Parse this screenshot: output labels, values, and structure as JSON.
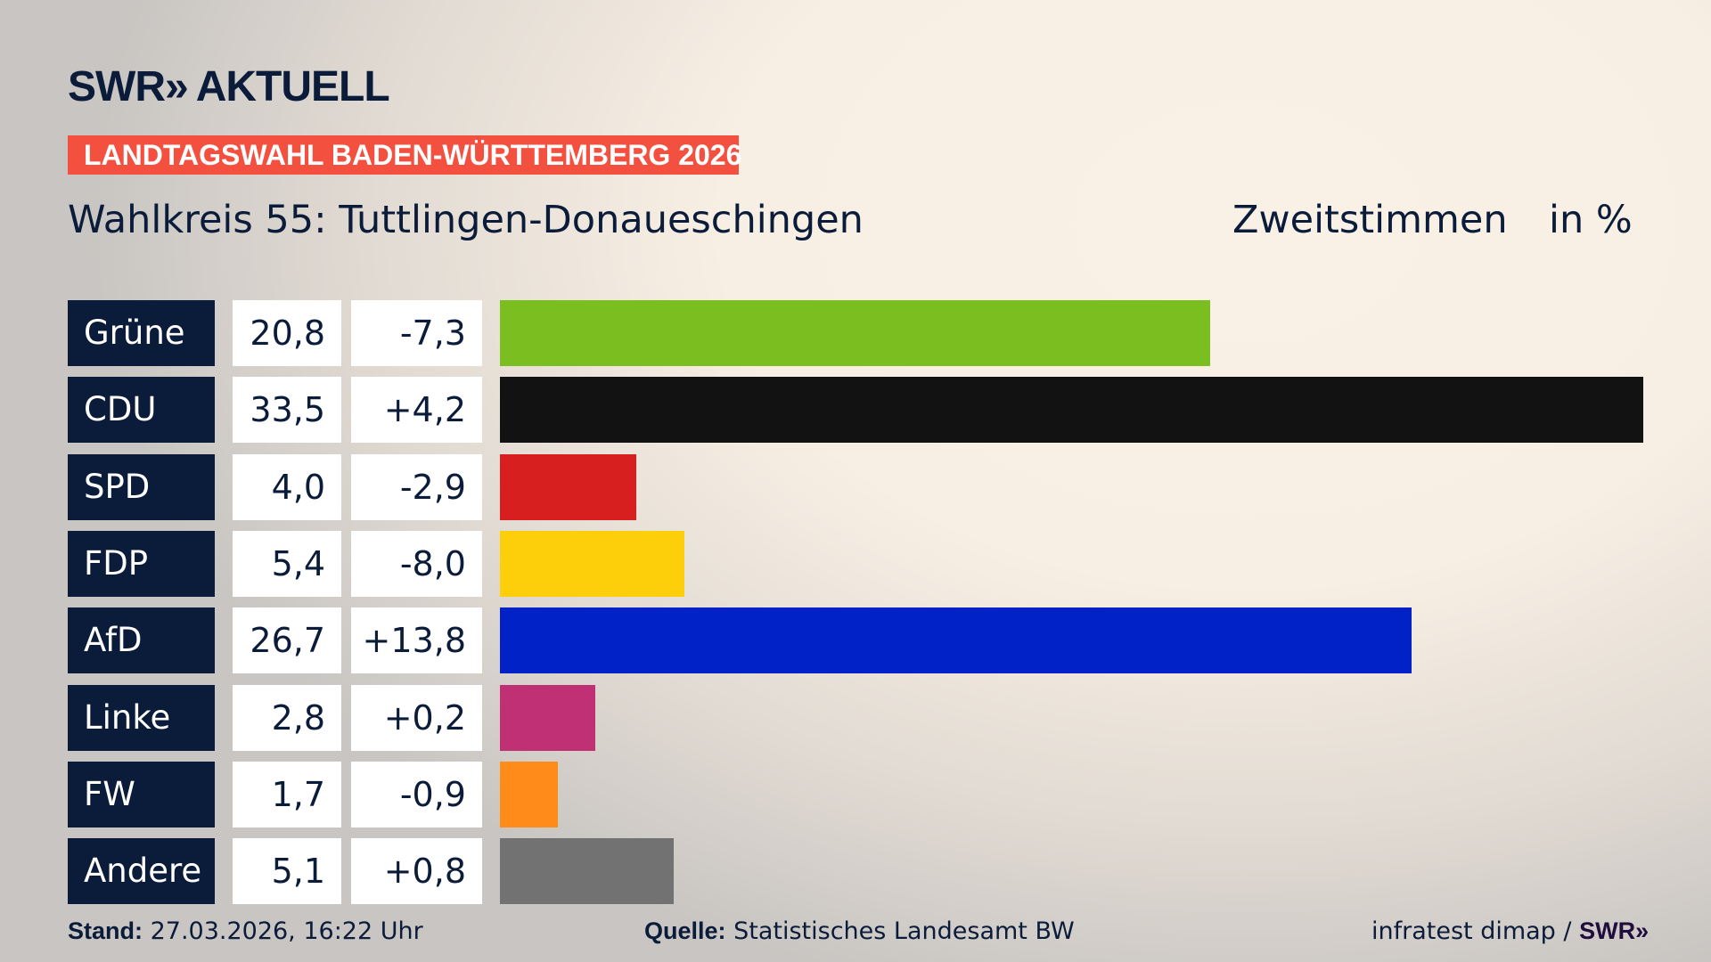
{
  "header": {
    "logo_text": "SWR",
    "logo_chevrons": "»",
    "logo_suffix": "AKTUELL",
    "banner": "LANDTAGSWAHL BADEN-WÜRTTEMBERG 2026",
    "subtitle": "Wahlkreis 55: Tuttlingen-Donaueschingen",
    "measure": "Zweitstimmen",
    "unit": "in %"
  },
  "chart_data": {
    "type": "bar",
    "orientation": "horizontal",
    "title": "Wahlkreis 55: Tuttlingen-Donaueschingen",
    "categories": [
      "Grüne",
      "CDU",
      "SPD",
      "FDP",
      "AfD",
      "Linke",
      "FW",
      "Andere"
    ],
    "values": [
      20.8,
      33.5,
      4.0,
      5.4,
      26.7,
      2.8,
      1.7,
      5.1
    ],
    "value_labels": [
      "20,8",
      "33,5",
      "4,0",
      "5,4",
      "26,7",
      "2,8",
      "1,7",
      "5,1"
    ],
    "diff_labels": [
      "-7,3",
      "+4,2",
      "-2,9",
      "-8,0",
      "+13,8",
      "+0,2",
      "-0,9",
      "+0,8"
    ],
    "diffs": [
      -7.3,
      4.2,
      -2.9,
      -8.0,
      13.8,
      0.2,
      -0.9,
      0.8
    ],
    "colors": [
      "#7bbe1f",
      "#121212",
      "#d81f1f",
      "#fdcf0a",
      "#0022c7",
      "#bf3075",
      "#ff8c1a",
      "#727272"
    ],
    "xlim": [
      0,
      33.5
    ],
    "grid": false
  },
  "footer": {
    "stand_label": "Stand:",
    "stand_value": "27.03.2026, 16:22 Uhr",
    "source_label": "Quelle:",
    "source_value": "Statistisches Landesamt BW",
    "credit": "infratest dimap /",
    "credit_logo": "SWR»"
  }
}
